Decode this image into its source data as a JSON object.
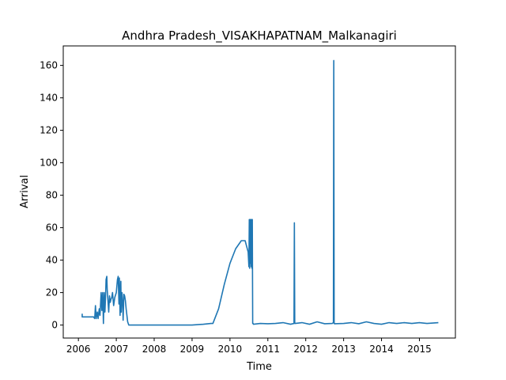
{
  "chart_data": {
    "type": "line",
    "title": "Andhra Pradesh_VISAKHAPATNAM_Malkanagiri",
    "xlabel": "Time",
    "ylabel": "Arrival",
    "xlim": [
      2005.6,
      2015.95
    ],
    "ylim": [
      -8,
      172
    ],
    "x_ticks": [
      2006,
      2007,
      2008,
      2009,
      2010,
      2011,
      2012,
      2013,
      2014,
      2015
    ],
    "y_ticks": [
      0,
      20,
      40,
      60,
      80,
      100,
      120,
      140,
      160
    ],
    "line_color": "#1f77b4",
    "grid": false,
    "legend": "none",
    "series": [
      {
        "x": [
          2006.1,
          2006.1,
          2006.12,
          2006.4,
          2006.43,
          2006.45,
          2006.47,
          2006.5,
          2006.52,
          2006.55,
          2006.57,
          2006.6,
          2006.62,
          2006.64,
          2006.66,
          2006.68,
          2006.7,
          2006.72,
          2006.73,
          2006.75,
          2006.76,
          2006.78,
          2006.8,
          2006.82,
          2006.84,
          2006.86,
          2006.88,
          2006.9,
          2006.93,
          2006.96,
          2007.0,
          2007.03,
          2007.05,
          2007.07,
          2007.08,
          2007.1,
          2007.12,
          2007.13,
          2007.15,
          2007.17,
          2007.18,
          2007.2,
          2007.22,
          2007.24,
          2007.26,
          2007.28,
          2007.3,
          2007.33,
          2007.36,
          2007.4,
          2007.45,
          2008.0,
          2009.0,
          2009.3,
          2009.5,
          2009.55,
          2009.7,
          2009.85,
          2010.0,
          2010.15,
          2010.3,
          2010.4,
          2010.48,
          2010.5,
          2010.51,
          2010.52,
          2010.53,
          2010.54,
          2010.55,
          2010.56,
          2010.57,
          2010.58,
          2010.59,
          2010.6,
          2010.61,
          2010.62,
          2010.8,
          2011.0,
          2011.2,
          2011.4,
          2011.6,
          2011.69,
          2011.7,
          2011.71,
          2011.72,
          2011.9,
          2012.1,
          2012.3,
          2012.5,
          2012.7,
          2012.73,
          2012.74,
          2012.75,
          2012.76,
          2013.0,
          2013.2,
          2013.4,
          2013.6,
          2013.8,
          2014.0,
          2014.2,
          2014.4,
          2014.6,
          2014.8,
          2015.0,
          2015.2,
          2015.5
        ],
        "values": [
          7,
          5,
          5,
          5,
          4,
          12,
          4,
          8,
          4,
          10,
          6,
          20,
          9,
          20,
          1,
          20,
          8,
          20,
          28,
          30,
          22,
          15,
          8,
          18,
          14,
          16,
          17,
          20,
          12,
          17,
          20,
          28,
          30,
          13,
          29,
          6,
          27,
          8,
          20,
          12,
          3,
          19,
          18,
          15,
          10,
          6,
          2,
          0,
          0,
          0,
          0,
          0,
          0,
          0.5,
          1,
          1,
          10,
          25,
          38,
          47,
          52,
          52,
          45,
          36,
          65,
          35,
          65,
          38,
          65,
          36,
          65,
          35,
          65,
          1,
          1,
          0.5,
          1,
          0.8,
          1,
          1.5,
          0.5,
          1,
          63,
          1,
          1,
          1.5,
          0.5,
          2,
          0.8,
          1,
          1.5,
          163,
          1,
          0.8,
          1,
          1.5,
          0.8,
          2,
          1,
          0.5,
          1.5,
          1,
          1.5,
          1,
          1.5,
          1,
          1.5
        ]
      }
    ]
  }
}
